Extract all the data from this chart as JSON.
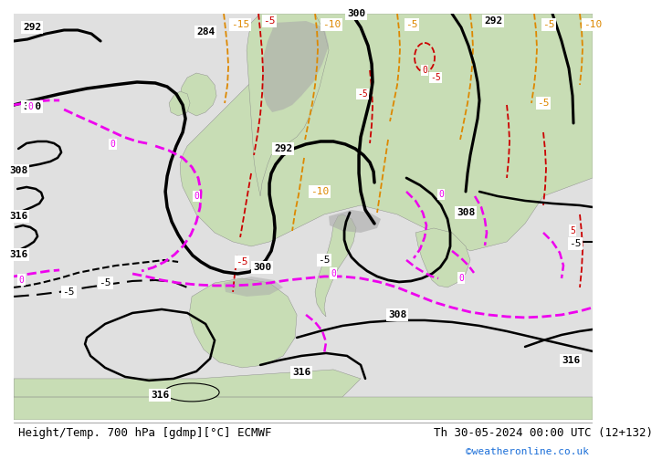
{
  "title_left": "Height/Temp. 700 hPa [gdmp][°C] ECMWF",
  "title_right": "Th 30-05-2024 00:00 UTC (12+132)",
  "watermark": "©weatheronline.co.uk",
  "title_fontsize": 9,
  "watermark_color": "#1a6ed8",
  "land_color": "#c8ddb5",
  "sea_color": "#e8e8e8",
  "gray_color": "#aaaaaa"
}
